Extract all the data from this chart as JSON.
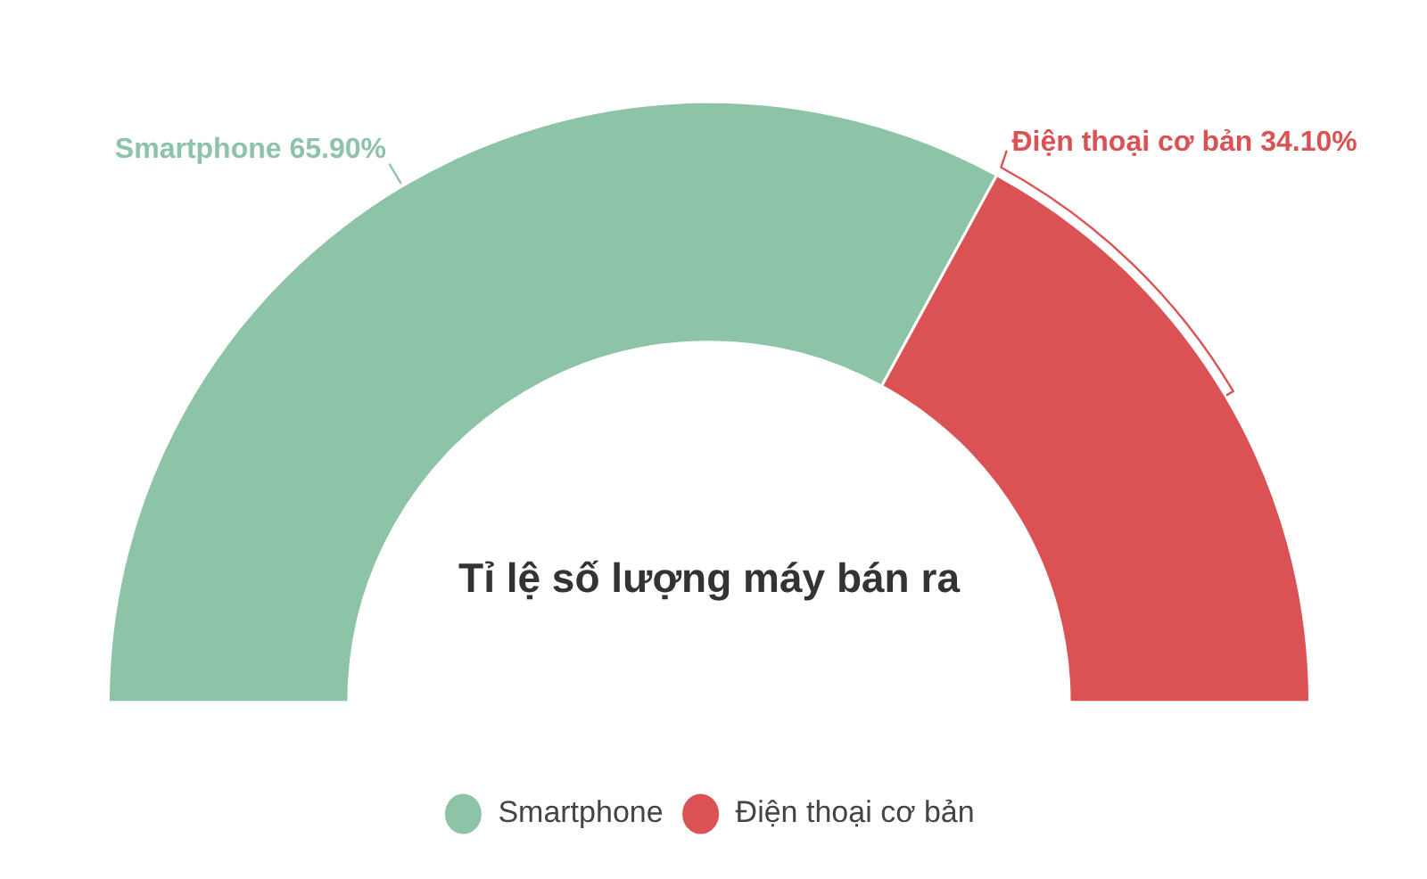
{
  "chart_data": {
    "type": "donut",
    "title": "Tỉ lệ số lượng máy bán ra",
    "categories": [
      "Smartphone",
      "Điện thoại cơ bản"
    ],
    "values": [
      65.9,
      34.1
    ],
    "colors": [
      "#8dc3a7",
      "#db5254"
    ],
    "value_labels": [
      "Smartphone 65.90%",
      "Điện thoại cơ bản 34.10%"
    ],
    "legend": "bottom"
  }
}
